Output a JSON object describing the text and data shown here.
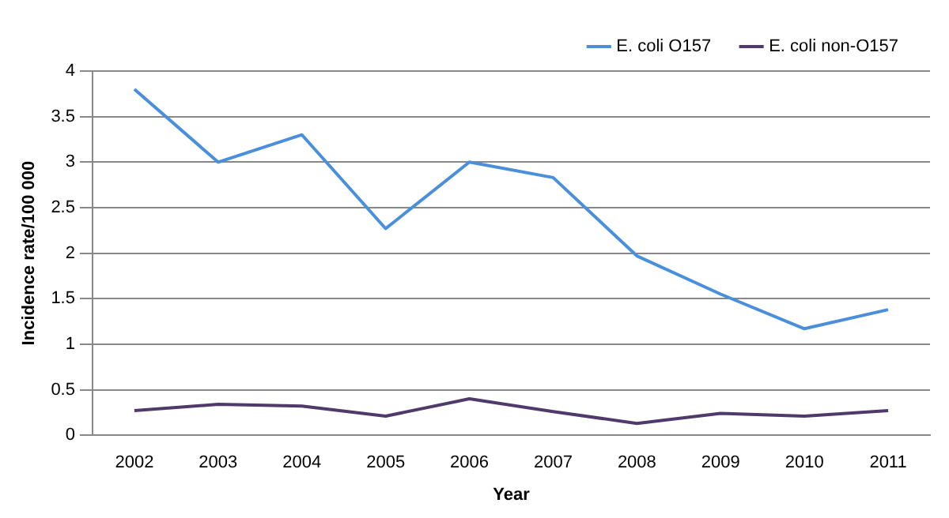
{
  "chart_data": {
    "type": "line",
    "xlabel": "Year",
    "ylabel": "Incidence rate/100 000",
    "categories": [
      "2002",
      "2003",
      "2004",
      "2005",
      "2006",
      "2007",
      "2008",
      "2009",
      "2010",
      "2011"
    ],
    "series": [
      {
        "name": "E. coli O157",
        "color": "#4a8fdc",
        "values": [
          3.8,
          3.0,
          3.3,
          2.27,
          3.0,
          2.83,
          1.97,
          1.55,
          1.17,
          1.38
        ]
      },
      {
        "name": "E. coli non-O157",
        "color": "#4f3a6b",
        "values": [
          0.27,
          0.34,
          0.32,
          0.21,
          0.4,
          0.26,
          0.13,
          0.24,
          0.21,
          0.27
        ]
      }
    ],
    "ylim": [
      0,
      4
    ],
    "yticks": [
      0,
      0.5,
      1,
      1.5,
      2,
      2.5,
      3,
      3.5,
      4
    ],
    "grid": "y",
    "legend": "top right",
    "marker": "none",
    "line_style": "solid"
  }
}
